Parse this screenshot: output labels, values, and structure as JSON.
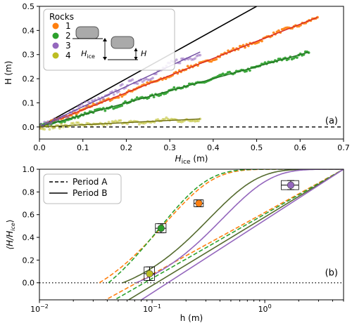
{
  "chart_data": [
    {
      "type": "scatter",
      "panel_label": "(a)",
      "xlabel_main": "H",
      "xlabel_sub": "ice",
      "xlabel_unit": " (m)",
      "ylabel": "H (m)",
      "xlim": [
        0.0,
        0.7
      ],
      "ylim": [
        -0.05,
        0.5
      ],
      "xticks": [
        "0.0",
        "0.1",
        "0.2",
        "0.3",
        "0.4",
        "0.5",
        "0.6",
        "0.7"
      ],
      "yticks": [
        "0.0",
        "0.1",
        "0.2",
        "0.3",
        "0.4",
        "0.5"
      ],
      "legend": {
        "title": "Rocks",
        "placement": "top-left"
      },
      "inset_labels": {
        "hice_main": "H",
        "hice_sub": "ice",
        "h": "H"
      },
      "reference_lines": [
        {
          "kind": "y = x",
          "color": "#000000",
          "style": "solid"
        },
        {
          "kind": "y = 0",
          "color": "#000000",
          "style": "dashed"
        }
      ],
      "series": [
        {
          "name": "1",
          "color": "#ff7f0e",
          "fit_color": "#d62728",
          "x_range": [
            0.0,
            0.64
          ],
          "slope": 0.71,
          "noise": 0.006
        },
        {
          "name": "2",
          "color": "#2ca02c",
          "fit_color": "#1f6f1f",
          "x_range": [
            0.0,
            0.62
          ],
          "slope": 0.5,
          "noise": 0.006
        },
        {
          "name": "3",
          "color": "#9467bd",
          "fit_color": "#6f4ba0",
          "x_range": [
            0.0,
            0.37
          ],
          "slope": 0.84,
          "noise": 0.012
        },
        {
          "name": "4",
          "color": "#bcbd22",
          "fit_color": "#6d6e10",
          "x_range": [
            0.0,
            0.37
          ],
          "slope": 0.09,
          "noise": 0.008
        }
      ]
    },
    {
      "type": "line",
      "panel_label": "(b)",
      "xlabel": "h (m)",
      "ylabel_main": "⟨H/H",
      "ylabel_sub": "ice",
      "ylabel_end": "⟩",
      "xscale": "log",
      "xlim": [
        0.01,
        5.0
      ],
      "ylim": [
        -0.15,
        1.0
      ],
      "xticks": [
        {
          "value": 0.01,
          "base": "10",
          "exp": "−2"
        },
        {
          "value": 0.1,
          "base": "10",
          "exp": "−1"
        },
        {
          "value": 1,
          "base": "10",
          "exp": "0"
        }
      ],
      "yticks": [
        "0.0",
        "0.2",
        "0.4",
        "0.6",
        "0.8",
        "1.0"
      ],
      "legend": {
        "placement": "top-left",
        "entries": [
          {
            "label": "Period A",
            "style": "dashed"
          },
          {
            "label": "Period B",
            "style": "solid"
          }
        ]
      },
      "reference_lines": [
        {
          "kind": "y = 0",
          "style": "dotted"
        }
      ],
      "curves": [
        {
          "period": "A",
          "color": "#ff7f0e",
          "h0": 0.034,
          "scale": 0.13
        },
        {
          "period": "A",
          "color": "#2ca02c",
          "h0": 0.041,
          "scale": 0.115
        },
        {
          "period": "B",
          "color": "#556b2f",
          "h0": 0.055,
          "scale": 0.32
        },
        {
          "period": "B",
          "color": "#9467bd",
          "h0": 0.072,
          "scale": 0.42
        }
      ],
      "points": [
        {
          "rock": "1",
          "color": "#ff7f0e",
          "h": 0.26,
          "value": 0.7,
          "h_err": [
            0.235,
            0.285
          ],
          "value_err": 0.03
        },
        {
          "rock": "2",
          "color": "#2ca02c",
          "h": 0.12,
          "value": 0.48,
          "h_err": [
            0.107,
            0.133
          ],
          "value_err": 0.04
        },
        {
          "rock": "3",
          "color": "#9467bd",
          "h": 1.7,
          "value": 0.86,
          "h_err": [
            1.4,
            2.0
          ],
          "value_err": 0.04
        },
        {
          "rock": "4",
          "color": "#bcbd22",
          "h": 0.095,
          "value": 0.08,
          "h_err": [
            0.085,
            0.105
          ],
          "value_err": 0.06
        }
      ]
    }
  ]
}
